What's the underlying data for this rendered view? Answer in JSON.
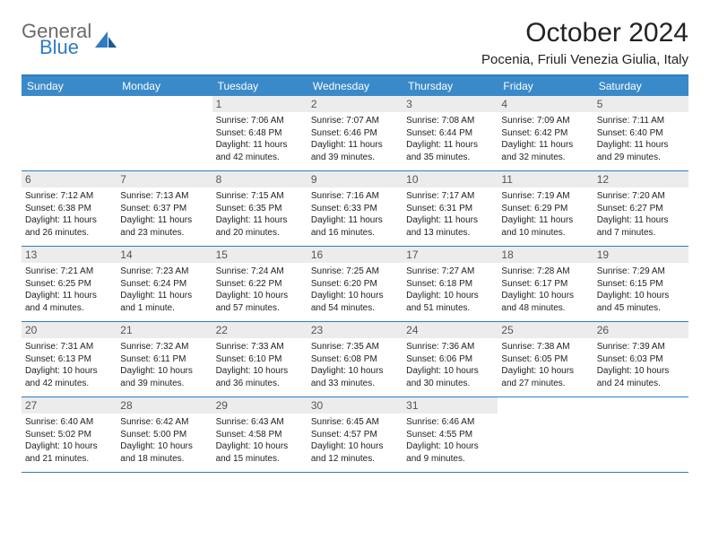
{
  "logo": {
    "line1": "General",
    "line2": "Blue"
  },
  "header": {
    "title": "October 2024",
    "location": "Pocenia, Friuli Venezia Giulia, Italy"
  },
  "colors": {
    "brand_blue": "#2f7cc0",
    "header_bg": "#3a8ac9",
    "daynum_bg": "#ececec",
    "text": "#222222",
    "logo_gray": "#6b6b6b"
  },
  "weekdays": [
    "Sunday",
    "Monday",
    "Tuesday",
    "Wednesday",
    "Thursday",
    "Friday",
    "Saturday"
  ],
  "weeks": [
    [
      null,
      null,
      {
        "n": "1",
        "sr": "Sunrise: 7:06 AM",
        "ss": "Sunset: 6:48 PM",
        "dl": "Daylight: 11 hours and 42 minutes."
      },
      {
        "n": "2",
        "sr": "Sunrise: 7:07 AM",
        "ss": "Sunset: 6:46 PM",
        "dl": "Daylight: 11 hours and 39 minutes."
      },
      {
        "n": "3",
        "sr": "Sunrise: 7:08 AM",
        "ss": "Sunset: 6:44 PM",
        "dl": "Daylight: 11 hours and 35 minutes."
      },
      {
        "n": "4",
        "sr": "Sunrise: 7:09 AM",
        "ss": "Sunset: 6:42 PM",
        "dl": "Daylight: 11 hours and 32 minutes."
      },
      {
        "n": "5",
        "sr": "Sunrise: 7:11 AM",
        "ss": "Sunset: 6:40 PM",
        "dl": "Daylight: 11 hours and 29 minutes."
      }
    ],
    [
      {
        "n": "6",
        "sr": "Sunrise: 7:12 AM",
        "ss": "Sunset: 6:38 PM",
        "dl": "Daylight: 11 hours and 26 minutes."
      },
      {
        "n": "7",
        "sr": "Sunrise: 7:13 AM",
        "ss": "Sunset: 6:37 PM",
        "dl": "Daylight: 11 hours and 23 minutes."
      },
      {
        "n": "8",
        "sr": "Sunrise: 7:15 AM",
        "ss": "Sunset: 6:35 PM",
        "dl": "Daylight: 11 hours and 20 minutes."
      },
      {
        "n": "9",
        "sr": "Sunrise: 7:16 AM",
        "ss": "Sunset: 6:33 PM",
        "dl": "Daylight: 11 hours and 16 minutes."
      },
      {
        "n": "10",
        "sr": "Sunrise: 7:17 AM",
        "ss": "Sunset: 6:31 PM",
        "dl": "Daylight: 11 hours and 13 minutes."
      },
      {
        "n": "11",
        "sr": "Sunrise: 7:19 AM",
        "ss": "Sunset: 6:29 PM",
        "dl": "Daylight: 11 hours and 10 minutes."
      },
      {
        "n": "12",
        "sr": "Sunrise: 7:20 AM",
        "ss": "Sunset: 6:27 PM",
        "dl": "Daylight: 11 hours and 7 minutes."
      }
    ],
    [
      {
        "n": "13",
        "sr": "Sunrise: 7:21 AM",
        "ss": "Sunset: 6:25 PM",
        "dl": "Daylight: 11 hours and 4 minutes."
      },
      {
        "n": "14",
        "sr": "Sunrise: 7:23 AM",
        "ss": "Sunset: 6:24 PM",
        "dl": "Daylight: 11 hours and 1 minute."
      },
      {
        "n": "15",
        "sr": "Sunrise: 7:24 AM",
        "ss": "Sunset: 6:22 PM",
        "dl": "Daylight: 10 hours and 57 minutes."
      },
      {
        "n": "16",
        "sr": "Sunrise: 7:25 AM",
        "ss": "Sunset: 6:20 PM",
        "dl": "Daylight: 10 hours and 54 minutes."
      },
      {
        "n": "17",
        "sr": "Sunrise: 7:27 AM",
        "ss": "Sunset: 6:18 PM",
        "dl": "Daylight: 10 hours and 51 minutes."
      },
      {
        "n": "18",
        "sr": "Sunrise: 7:28 AM",
        "ss": "Sunset: 6:17 PM",
        "dl": "Daylight: 10 hours and 48 minutes."
      },
      {
        "n": "19",
        "sr": "Sunrise: 7:29 AM",
        "ss": "Sunset: 6:15 PM",
        "dl": "Daylight: 10 hours and 45 minutes."
      }
    ],
    [
      {
        "n": "20",
        "sr": "Sunrise: 7:31 AM",
        "ss": "Sunset: 6:13 PM",
        "dl": "Daylight: 10 hours and 42 minutes."
      },
      {
        "n": "21",
        "sr": "Sunrise: 7:32 AM",
        "ss": "Sunset: 6:11 PM",
        "dl": "Daylight: 10 hours and 39 minutes."
      },
      {
        "n": "22",
        "sr": "Sunrise: 7:33 AM",
        "ss": "Sunset: 6:10 PM",
        "dl": "Daylight: 10 hours and 36 minutes."
      },
      {
        "n": "23",
        "sr": "Sunrise: 7:35 AM",
        "ss": "Sunset: 6:08 PM",
        "dl": "Daylight: 10 hours and 33 minutes."
      },
      {
        "n": "24",
        "sr": "Sunrise: 7:36 AM",
        "ss": "Sunset: 6:06 PM",
        "dl": "Daylight: 10 hours and 30 minutes."
      },
      {
        "n": "25",
        "sr": "Sunrise: 7:38 AM",
        "ss": "Sunset: 6:05 PM",
        "dl": "Daylight: 10 hours and 27 minutes."
      },
      {
        "n": "26",
        "sr": "Sunrise: 7:39 AM",
        "ss": "Sunset: 6:03 PM",
        "dl": "Daylight: 10 hours and 24 minutes."
      }
    ],
    [
      {
        "n": "27",
        "sr": "Sunrise: 6:40 AM",
        "ss": "Sunset: 5:02 PM",
        "dl": "Daylight: 10 hours and 21 minutes."
      },
      {
        "n": "28",
        "sr": "Sunrise: 6:42 AM",
        "ss": "Sunset: 5:00 PM",
        "dl": "Daylight: 10 hours and 18 minutes."
      },
      {
        "n": "29",
        "sr": "Sunrise: 6:43 AM",
        "ss": "Sunset: 4:58 PM",
        "dl": "Daylight: 10 hours and 15 minutes."
      },
      {
        "n": "30",
        "sr": "Sunrise: 6:45 AM",
        "ss": "Sunset: 4:57 PM",
        "dl": "Daylight: 10 hours and 12 minutes."
      },
      {
        "n": "31",
        "sr": "Sunrise: 6:46 AM",
        "ss": "Sunset: 4:55 PM",
        "dl": "Daylight: 10 hours and 9 minutes."
      },
      null,
      null
    ]
  ]
}
